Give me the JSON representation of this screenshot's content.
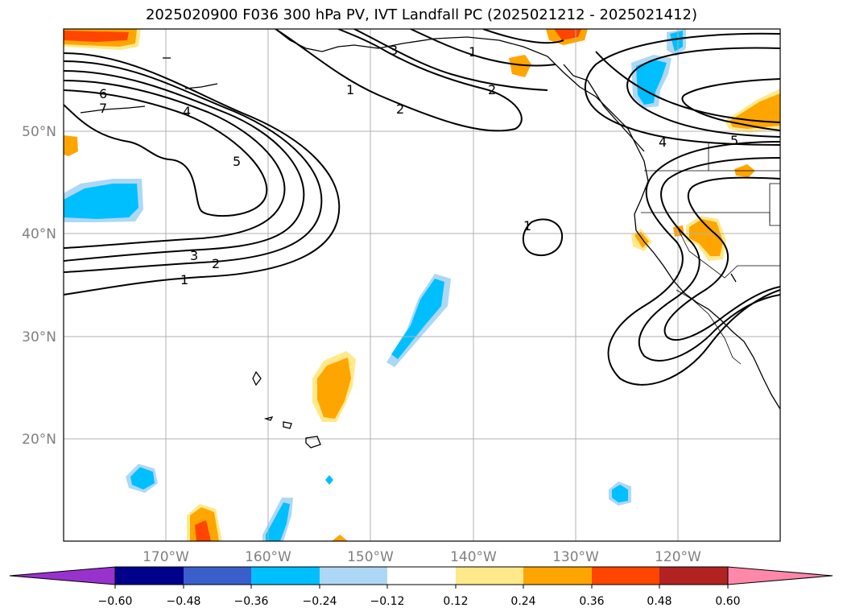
{
  "title": "2025020900 F036 300 hPa PV, IVT Landfall PC (2025021212 - 2025021412)",
  "longitude_ticks": [
    "170°W",
    "160°W",
    "150°W",
    "140°W",
    "130°W",
    "120°W"
  ],
  "latitude_ticks": [
    "50°N",
    "40°N",
    "30°N",
    "20°N"
  ],
  "contour_labels": [
    "6",
    "7",
    "4",
    "5",
    "3",
    "2",
    "1",
    "1",
    "2",
    "3",
    "1",
    "2",
    "4",
    "5",
    "1"
  ],
  "colorbar": {
    "tick_labels": [
      "−0.60",
      "−0.48",
      "−0.36",
      "−0.24",
      "−0.12",
      "0.12",
      "0.24",
      "0.36",
      "0.48",
      "0.60"
    ],
    "colors": [
      "#9932cc",
      "#00008b",
      "#3a5fcd",
      "#00bfff",
      "#add8f5",
      "#ffffff",
      "#ffe98a",
      "#ffa500",
      "#ff4500",
      "#b22222",
      "#ff88aa"
    ]
  },
  "chart_data": {
    "type": "map",
    "projection": "lat-lon (PlateCarree)",
    "extent": {
      "lon": [
        -180,
        -110
      ],
      "lat": [
        10,
        60
      ]
    },
    "contour_field": "300 hPa PV",
    "contour_levels": [
      1,
      2,
      3,
      4,
      5,
      6,
      7
    ],
    "shaded_field": "IVT Landfall PC",
    "shading_levels": [
      -0.6,
      -0.48,
      -0.36,
      -0.24,
      -0.12,
      0.12,
      0.24,
      0.36,
      0.48,
      0.6
    ],
    "colorbar_extend": "both",
    "gridlines": true
  }
}
